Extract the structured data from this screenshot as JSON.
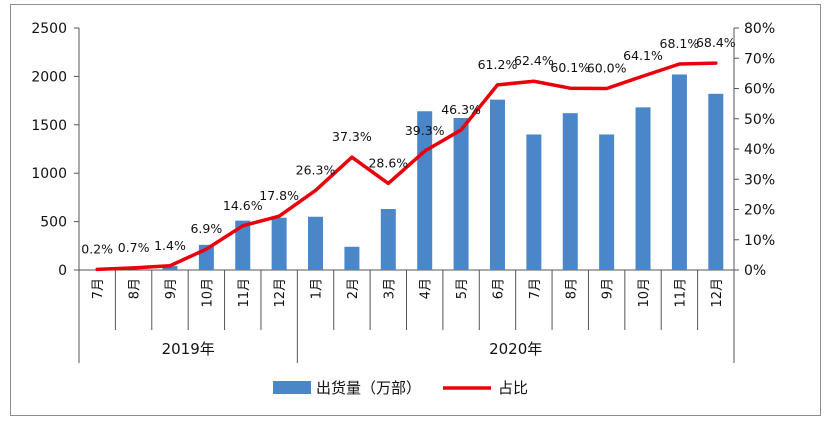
{
  "chart_data": {
    "type": "bar",
    "categories": [
      "7月",
      "8月",
      "9月",
      "10月",
      "11月",
      "12月",
      "1月",
      "2月",
      "3月",
      "4月",
      "5月",
      "6月",
      "7月",
      "8月",
      "9月",
      "10月",
      "11月",
      "12月"
    ],
    "years": [
      {
        "label": "2019年",
        "count": 6
      },
      {
        "label": "2020年",
        "count": 12
      }
    ],
    "series": [
      {
        "name": "出货量（万部）",
        "type": "bar",
        "axis": "left",
        "color": "#4a86c8",
        "values": [
          0,
          0,
          40,
          260,
          510,
          540,
          550,
          240,
          630,
          1640,
          1570,
          1760,
          1400,
          1620,
          1400,
          1680,
          2020,
          1820
        ]
      },
      {
        "name": "占比",
        "type": "line",
        "axis": "right",
        "color": "#e8000b",
        "values": [
          0.2,
          0.7,
          1.4,
          6.9,
          14.6,
          17.8,
          26.3,
          37.3,
          28.6,
          39.3,
          46.3,
          61.2,
          62.4,
          60.1,
          60.0,
          64.1,
          68.1,
          68.4
        ],
        "labels": [
          "0.2%",
          "0.7%",
          "1.4%",
          "6.9%",
          "14.6%",
          "17.8%",
          "26.3%",
          "37.3%",
          "28.6%",
          "39.3%",
          "46.3%",
          "61.2%",
          "62.4%",
          "60.1%",
          "60.0%",
          "64.1%",
          "68.1%",
          "68.4%"
        ]
      }
    ],
    "y_left": {
      "ticks": [
        "0",
        "500",
        "1000",
        "1500",
        "2000",
        "2500"
      ],
      "ylim": [
        0,
        2500
      ]
    },
    "y_right": {
      "ticks": [
        "0%",
        "10%",
        "20%",
        "30%",
        "40%",
        "50%",
        "60%",
        "70%",
        "80%"
      ],
      "ylim": [
        0,
        80
      ]
    },
    "legend_position": "bottom",
    "grid": false
  }
}
